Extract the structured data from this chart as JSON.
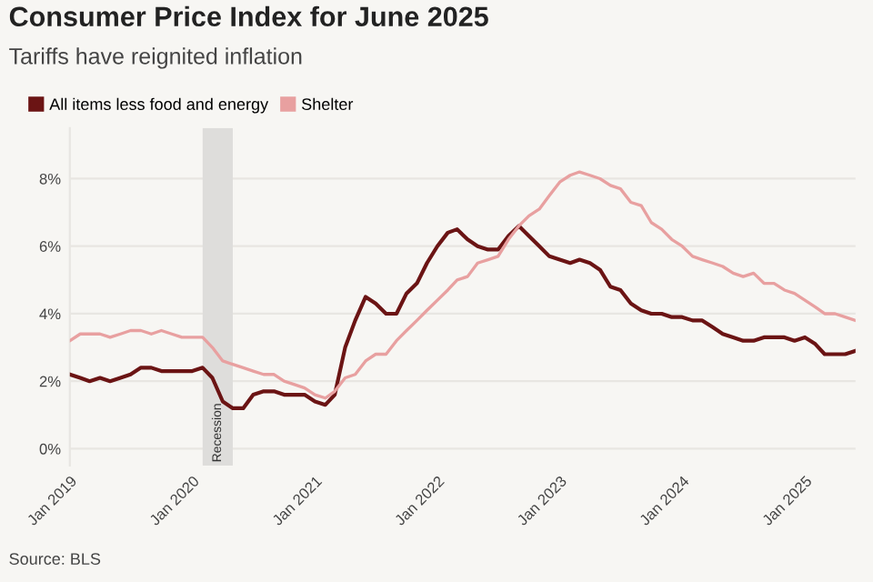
{
  "chart_data": {
    "type": "line",
    "title": "Consumer Price Index for June 2025",
    "subtitle": "Tariffs have reignited inflation",
    "x": [
      "2019-01",
      "2019-02",
      "2019-03",
      "2019-04",
      "2019-05",
      "2019-06",
      "2019-07",
      "2019-08",
      "2019-09",
      "2019-10",
      "2019-11",
      "2019-12",
      "2020-01",
      "2020-02",
      "2020-03",
      "2020-04",
      "2020-05",
      "2020-06",
      "2020-07",
      "2020-08",
      "2020-09",
      "2020-10",
      "2020-11",
      "2020-12",
      "2021-01",
      "2021-02",
      "2021-03",
      "2021-04",
      "2021-05",
      "2021-06",
      "2021-07",
      "2021-08",
      "2021-09",
      "2021-10",
      "2021-11",
      "2021-12",
      "2022-01",
      "2022-02",
      "2022-03",
      "2022-04",
      "2022-05",
      "2022-06",
      "2022-07",
      "2022-08",
      "2022-09",
      "2022-10",
      "2022-11",
      "2022-12",
      "2023-01",
      "2023-02",
      "2023-03",
      "2023-04",
      "2023-05",
      "2023-06",
      "2023-07",
      "2023-08",
      "2023-09",
      "2023-10",
      "2023-11",
      "2023-12",
      "2024-01",
      "2024-02",
      "2024-03",
      "2024-04",
      "2024-05",
      "2024-06",
      "2024-07",
      "2024-08",
      "2024-09",
      "2024-10",
      "2024-11",
      "2024-12",
      "2025-01",
      "2025-02",
      "2025-03",
      "2025-04",
      "2025-05",
      "2025-06"
    ],
    "series": [
      {
        "name": "All items less food and energy",
        "color": "#6b1414",
        "values": [
          2.2,
          2.1,
          2.0,
          2.1,
          2.0,
          2.1,
          2.2,
          2.4,
          2.4,
          2.3,
          2.3,
          2.3,
          2.3,
          2.4,
          2.1,
          1.4,
          1.2,
          1.2,
          1.6,
          1.7,
          1.7,
          1.6,
          1.6,
          1.6,
          1.4,
          1.3,
          1.6,
          3.0,
          3.8,
          4.5,
          4.3,
          4.0,
          4.0,
          4.6,
          4.9,
          5.5,
          6.0,
          6.4,
          6.5,
          6.2,
          6.0,
          5.9,
          5.9,
          6.3,
          6.6,
          6.3,
          6.0,
          5.7,
          5.6,
          5.5,
          5.6,
          5.5,
          5.3,
          4.8,
          4.7,
          4.3,
          4.1,
          4.0,
          4.0,
          3.9,
          3.9,
          3.8,
          3.8,
          3.6,
          3.4,
          3.3,
          3.2,
          3.2,
          3.3,
          3.3,
          3.3,
          3.2,
          3.3,
          3.1,
          2.8,
          2.8,
          2.8,
          2.9
        ]
      },
      {
        "name": "Shelter",
        "color": "#e8a0a0",
        "values": [
          3.2,
          3.4,
          3.4,
          3.4,
          3.3,
          3.4,
          3.5,
          3.5,
          3.4,
          3.5,
          3.4,
          3.3,
          3.3,
          3.3,
          3.0,
          2.6,
          2.5,
          2.4,
          2.3,
          2.2,
          2.2,
          2.0,
          1.9,
          1.8,
          1.6,
          1.5,
          1.7,
          2.1,
          2.2,
          2.6,
          2.8,
          2.8,
          3.2,
          3.5,
          3.8,
          4.1,
          4.4,
          4.7,
          5.0,
          5.1,
          5.5,
          5.6,
          5.7,
          6.2,
          6.6,
          6.9,
          7.1,
          7.5,
          7.9,
          8.1,
          8.2,
          8.1,
          8.0,
          7.8,
          7.7,
          7.3,
          7.2,
          6.7,
          6.5,
          6.2,
          6.0,
          5.7,
          5.6,
          5.5,
          5.4,
          5.2,
          5.1,
          5.2,
          4.9,
          4.9,
          4.7,
          4.6,
          4.4,
          4.2,
          4.0,
          4.0,
          3.9,
          3.8
        ]
      }
    ],
    "xlim": [
      "2019-01",
      "2025-06"
    ],
    "xticks": [
      {
        "value": "2019-01",
        "label": "Jan 2019"
      },
      {
        "value": "2020-01",
        "label": "Jan 2020"
      },
      {
        "value": "2021-01",
        "label": "Jan 2021"
      },
      {
        "value": "2022-01",
        "label": "Jan 2022"
      },
      {
        "value": "2023-01",
        "label": "Jan 2023"
      },
      {
        "value": "2024-01",
        "label": "Jan 2024"
      },
      {
        "value": "2025-01",
        "label": "Jan 2025"
      }
    ],
    "ylim": [
      -0.5,
      9.5
    ],
    "yticks": [
      {
        "value": 0,
        "label": "0%"
      },
      {
        "value": 2,
        "label": "2%"
      },
      {
        "value": 4,
        "label": "4%"
      },
      {
        "value": 6,
        "label": "6%"
      },
      {
        "value": 8,
        "label": "8%"
      }
    ],
    "bands": [
      {
        "axis": "x",
        "from": "2020-02",
        "to": "2020-05",
        "label": "Recession",
        "color": "#dedddb"
      }
    ],
    "annotations": [
      "Source: BLS"
    ],
    "grid": "y",
    "legend": "top left",
    "line_style": "solid",
    "marker": "none"
  }
}
